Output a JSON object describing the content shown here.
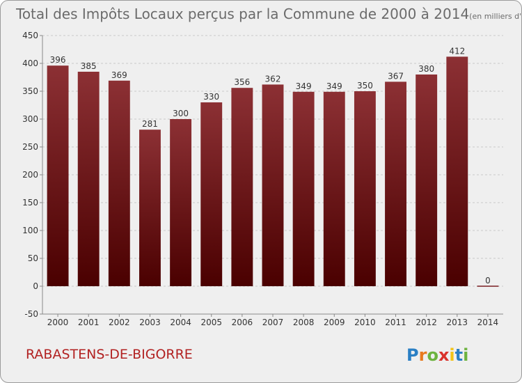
{
  "chart_data": {
    "type": "bar",
    "title": "Total des Impôts Locaux perçus par la Commune de 2000 à 2014",
    "unit_note": "(en milliers d'€)",
    "categories": [
      "2000",
      "2001",
      "2002",
      "2003",
      "2004",
      "2005",
      "2006",
      "2007",
      "2008",
      "2009",
      "2010",
      "2011",
      "2012",
      "2013",
      "2014"
    ],
    "values": [
      396,
      385,
      369,
      281,
      300,
      330,
      356,
      362,
      349,
      349,
      350,
      367,
      380,
      412,
      0
    ],
    "ylim": [
      -50,
      450
    ],
    "yticks": [
      -50,
      0,
      50,
      100,
      150,
      200,
      250,
      300,
      350,
      400,
      450
    ],
    "grid": "horizontal dashed",
    "bar_color_top": "#8c3034",
    "bar_color_bottom": "#4a0000"
  },
  "commune_name": "RABASTENS-DE-BIGORRE",
  "commune_color": "#b22222",
  "brand": {
    "text": "Proxiti",
    "letter_colors": [
      "#2a7fc4",
      "#e87a1e",
      "#6db33f",
      "#d9322c",
      "#f2c318",
      "#2a7fc4",
      "#6db33f"
    ]
  }
}
